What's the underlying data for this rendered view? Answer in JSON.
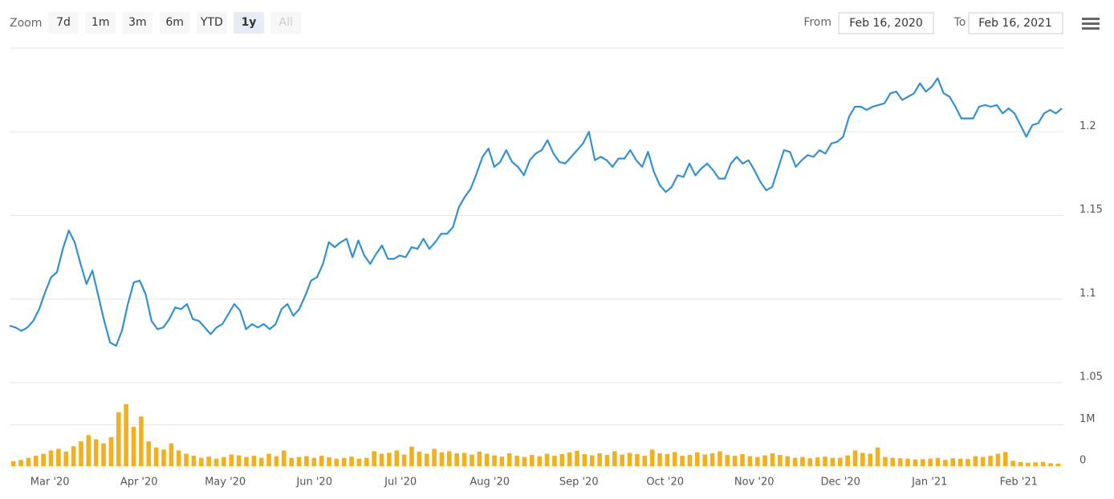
{
  "zoom": {
    "label": "Zoom",
    "buttons": [
      "7d",
      "1m",
      "3m",
      "6m",
      "YTD",
      "1y",
      "All"
    ],
    "selected": 5,
    "disabled": 6
  },
  "range": {
    "from_label": "From",
    "from": "Feb 16, 2020",
    "to_label": "To",
    "to": "Feb 16, 2021"
  },
  "chart_data": [
    {
      "type": "line",
      "color": "#3291d1",
      "xlim": [
        "2020-02-16",
        "2021-02-16"
      ],
      "ylim": [
        1.05,
        1.25
      ],
      "yticks": [
        1.05,
        1.1,
        1.15,
        1.2
      ],
      "grid": true,
      "values": [
        1.084,
        1.083,
        1.081,
        1.083,
        1.087,
        1.094,
        1.104,
        1.113,
        1.116,
        1.13,
        1.141,
        1.134,
        1.121,
        1.109,
        1.117,
        1.102,
        1.087,
        1.074,
        1.072,
        1.081,
        1.097,
        1.11,
        1.111,
        1.103,
        1.087,
        1.082,
        1.083,
        1.088,
        1.095,
        1.094,
        1.097,
        1.088,
        1.087,
        1.083,
        1.079,
        1.083,
        1.085,
        1.091,
        1.097,
        1.093,
        1.082,
        1.085,
        1.083,
        1.085,
        1.082,
        1.085,
        1.094,
        1.097,
        1.09,
        1.094,
        1.102,
        1.111,
        1.113,
        1.121,
        1.134,
        1.131,
        1.134,
        1.136,
        1.125,
        1.135,
        1.126,
        1.121,
        1.127,
        1.132,
        1.124,
        1.124,
        1.126,
        1.125,
        1.131,
        1.13,
        1.136,
        1.13,
        1.134,
        1.139,
        1.139,
        1.143,
        1.155,
        1.161,
        1.166,
        1.175,
        1.185,
        1.19,
        1.179,
        1.182,
        1.189,
        1.182,
        1.179,
        1.174,
        1.183,
        1.187,
        1.189,
        1.195,
        1.187,
        1.182,
        1.181,
        1.185,
        1.189,
        1.193,
        1.2,
        1.183,
        1.185,
        1.183,
        1.179,
        1.184,
        1.184,
        1.189,
        1.183,
        1.179,
        1.188,
        1.176,
        1.168,
        1.164,
        1.167,
        1.174,
        1.173,
        1.181,
        1.174,
        1.178,
        1.181,
        1.177,
        1.172,
        1.172,
        1.181,
        1.185,
        1.181,
        1.183,
        1.177,
        1.17,
        1.165,
        1.167,
        1.178,
        1.189,
        1.188,
        1.179,
        1.183,
        1.186,
        1.185,
        1.189,
        1.187,
        1.193,
        1.194,
        1.197,
        1.209,
        1.215,
        1.215,
        1.213,
        1.215,
        1.216,
        1.217,
        1.223,
        1.224,
        1.219,
        1.221,
        1.223,
        1.229,
        1.224,
        1.227,
        1.232,
        1.223,
        1.221,
        1.215,
        1.208,
        1.208,
        1.208,
        1.215,
        1.216,
        1.215,
        1.216,
        1.211,
        1.214,
        1.211,
        1.204,
        1.197,
        1.204,
        1.205,
        1.211,
        1.213,
        1.211,
        1.214
      ]
    },
    {
      "type": "bar",
      "color": "#f2b01e",
      "xlim": [
        "2020-02-16",
        "2021-02-16"
      ],
      "xticks": [
        {
          "value": "2020-03",
          "label": "Mar '20"
        },
        {
          "value": "2020-04",
          "label": "Apr '20"
        },
        {
          "value": "2020-05",
          "label": "May '20"
        },
        {
          "value": "2020-06",
          "label": "Jun '20"
        },
        {
          "value": "2020-07",
          "label": "Jul '20"
        },
        {
          "value": "2020-08",
          "label": "Aug '20"
        },
        {
          "value": "2020-09",
          "label": "Sep '20"
        },
        {
          "value": "2020-10",
          "label": "Oct '20"
        },
        {
          "value": "2020-11",
          "label": "Nov '20"
        },
        {
          "value": "2020-12",
          "label": "Dec '20"
        },
        {
          "value": "2021-01",
          "label": "Jan '21"
        },
        {
          "value": "2021-02",
          "label": "Feb '21"
        }
      ],
      "ylim": [
        0,
        2000000
      ],
      "yticks": [
        0,
        {
          "value": 1000000,
          "label": "1M"
        }
      ],
      "grid": true,
      "values": [
        120000,
        150000,
        200000,
        250000,
        300000,
        380000,
        420000,
        350000,
        480000,
        600000,
        750000,
        650000,
        550000,
        700000,
        1300000,
        1500000,
        950000,
        1200000,
        600000,
        450000,
        400000,
        550000,
        380000,
        300000,
        250000,
        200000,
        230000,
        180000,
        220000,
        280000,
        260000,
        220000,
        250000,
        200000,
        300000,
        240000,
        380000,
        200000,
        220000,
        240000,
        200000,
        250000,
        210000,
        180000,
        200000,
        230000,
        180000,
        200000,
        360000,
        300000,
        320000,
        380000,
        280000,
        470000,
        350000,
        300000,
        420000,
        330000,
        360000,
        310000,
        320000,
        280000,
        350000,
        300000,
        260000,
        230000,
        310000,
        250000,
        220000,
        270000,
        240000,
        300000,
        250000,
        290000,
        330000,
        370000,
        290000,
        260000,
        310000,
        270000,
        360000,
        280000,
        320000,
        290000,
        250000,
        400000,
        310000,
        290000,
        340000,
        250000,
        270000,
        330000,
        280000,
        310000,
        360000,
        270000,
        250000,
        290000,
        240000,
        220000,
        260000,
        310000,
        270000,
        240000,
        200000,
        220000,
        190000,
        210000,
        230000,
        200000,
        200000,
        260000,
        380000,
        320000,
        300000,
        450000,
        220000,
        200000,
        190000,
        180000,
        160000,
        170000,
        180000,
        200000,
        150000,
        190000,
        180000,
        170000,
        240000,
        220000,
        250000,
        300000,
        340000,
        130000,
        100000,
        80000,
        90000,
        100000,
        70000,
        60000
      ]
    }
  ]
}
